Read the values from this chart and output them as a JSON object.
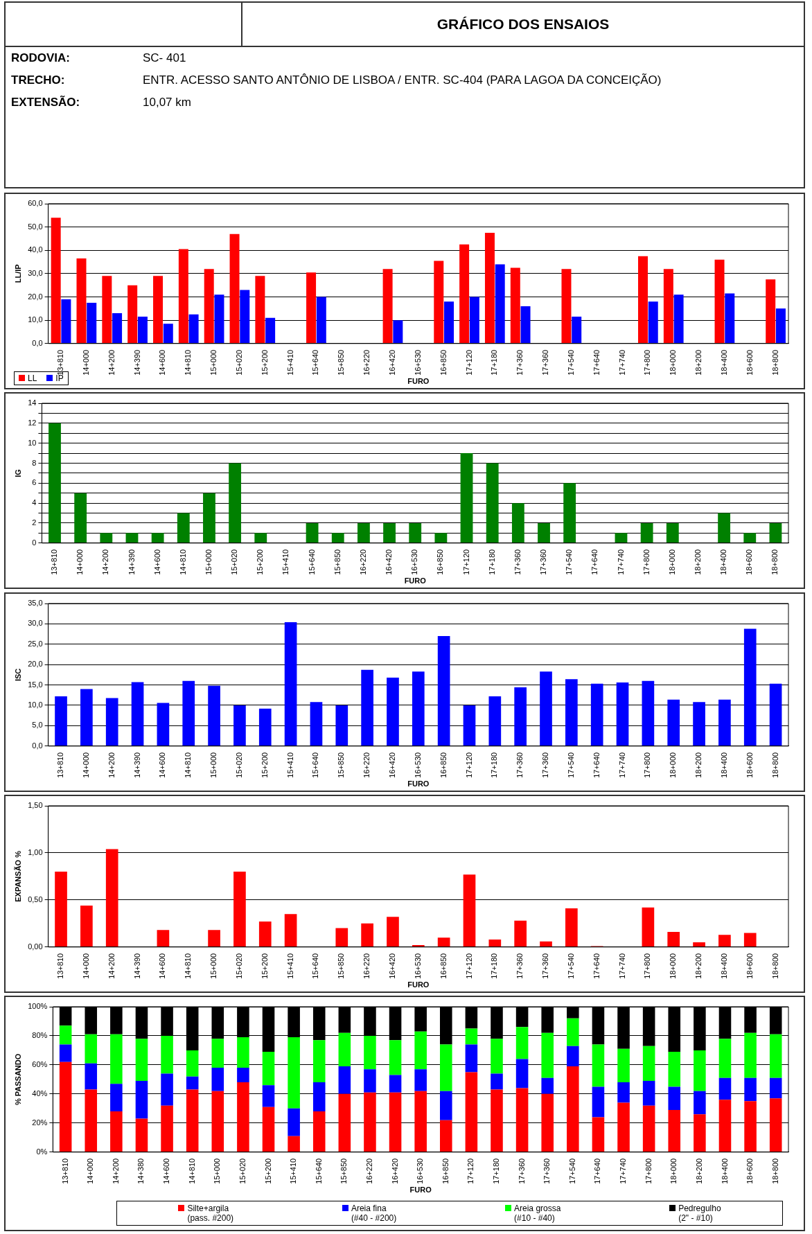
{
  "chart_data": [
    {
      "type": "other",
      "title": "GRÁFICO DOS  ENSAIOS",
      "annotations": [
        "RODOVIA:",
        "SC- 401",
        "TRECHO:",
        "ENTR. ACESSO SANTO ANTÔNIO DE LISBOA / ENTR. SC-404 (PARA LAGOA DA CONCEIÇÃO)",
        "EXTENSÃO:",
        "10,07 km"
      ]
    },
    {
      "type": "bar",
      "xlabel": "FURO",
      "ylabel": "LL/IP",
      "categories": [
        "13+810",
        "14+000",
        "14+200",
        "14+390",
        "14+600",
        "14+810",
        "15+000",
        "15+020",
        "15+200",
        "15+410",
        "15+640",
        "15+850",
        "16+220",
        "16+420",
        "16+530",
        "16+850",
        "17+120",
        "17+180",
        "17+360",
        "17+360",
        "17+540",
        "17+640",
        "17+740",
        "17+800",
        "18+000",
        "18+200",
        "18+400",
        "18+600",
        "18+800"
      ],
      "series": [
        {
          "name": "LL",
          "color": "#ff0000",
          "values": [
            54,
            36.5,
            29,
            25,
            29,
            40.5,
            32,
            47,
            29,
            null,
            30.5,
            null,
            null,
            32,
            null,
            35.5,
            42.5,
            47.5,
            32.5,
            null,
            32,
            null,
            null,
            37.5,
            32,
            null,
            36,
            null,
            27.5
          ]
        },
        {
          "name": "IP",
          "color": "#0000ff",
          "values": [
            19,
            17.5,
            13,
            11.5,
            8.5,
            12.5,
            21,
            23,
            11,
            null,
            20,
            null,
            null,
            10,
            null,
            18,
            20,
            34,
            16,
            null,
            11.5,
            null,
            null,
            18,
            21,
            null,
            21.5,
            null,
            15
          ]
        }
      ],
      "ylim": [
        0,
        60
      ],
      "yticks": [
        {
          "value": 0,
          "label": "0,0"
        },
        {
          "value": 10,
          "label": "10,0"
        },
        {
          "value": 20,
          "label": "20,0"
        },
        {
          "value": 30,
          "label": "30,0"
        },
        {
          "value": 40,
          "label": "40,0"
        },
        {
          "value": 50,
          "label": "50,0"
        },
        {
          "value": 60,
          "label": "60,0"
        }
      ],
      "grid": "y",
      "legend": "bottom left"
    },
    {
      "type": "bar",
      "xlabel": "FURO",
      "ylabel": "IG",
      "categories": [
        "13+810",
        "14+000",
        "14+200",
        "14+390",
        "14+600",
        "14+810",
        "15+000",
        "15+020",
        "15+200",
        "15+410",
        "15+640",
        "15+850",
        "16+220",
        "16+420",
        "16+530",
        "16+850",
        "17+120",
        "17+180",
        "17+360",
        "17+360",
        "17+540",
        "17+640",
        "17+740",
        "17+800",
        "18+000",
        "18+200",
        "18+400",
        "18+600",
        "18+800"
      ],
      "series": [
        {
          "color": "#008000",
          "values": [
            12,
            5,
            1,
            1,
            1,
            3,
            5,
            8,
            1,
            null,
            2,
            1,
            2,
            2,
            2,
            1,
            9,
            8,
            4,
            2,
            6,
            null,
            1,
            2,
            2,
            null,
            3,
            1,
            2
          ]
        }
      ],
      "ylim": [
        0,
        14
      ],
      "yticks": [
        0,
        {
          "value": 1,
          "label": null
        },
        2,
        {
          "value": 3,
          "label": null
        },
        4,
        {
          "value": 5,
          "label": null
        },
        6,
        {
          "value": 7,
          "label": null
        },
        8,
        {
          "value": 9,
          "label": null
        },
        10,
        {
          "value": 11,
          "label": null
        },
        12,
        {
          "value": 13,
          "label": null
        },
        14
      ],
      "grid": "y"
    },
    {
      "type": "bar",
      "xlabel": "FURO",
      "ylabel": "ISC",
      "categories": [
        "13+810",
        "14+000",
        "14+200",
        "14+390",
        "14+600",
        "14+810",
        "15+000",
        "15+020",
        "15+200",
        "15+410",
        "15+640",
        "15+850",
        "16+220",
        "16+420",
        "16+530",
        "16+850",
        "17+120",
        "17+180",
        "17+360",
        "17+360",
        "17+540",
        "17+640",
        "17+740",
        "17+800",
        "18+000",
        "18+200",
        "18+400",
        "18+600",
        "18+800"
      ],
      "series": [
        {
          "color": "#0000ff",
          "values": [
            12.2,
            14,
            11.8,
            15.7,
            10.6,
            16,
            14.8,
            10,
            9.2,
            30.4,
            10.8,
            10,
            18.7,
            16.8,
            18.3,
            27,
            10,
            12.2,
            14.4,
            18.3,
            16.4,
            15.3,
            15.6,
            16,
            11.4,
            10.8,
            11.4,
            28.8,
            15.3
          ]
        }
      ],
      "ylim": [
        0,
        35
      ],
      "yticks": [
        {
          "value": 0,
          "label": "0,0"
        },
        {
          "value": 5,
          "label": "5,0"
        },
        {
          "value": 10,
          "label": "10,0"
        },
        {
          "value": 15,
          "label": "15,0"
        },
        {
          "value": 20,
          "label": "20,0"
        },
        {
          "value": 25,
          "label": "25,0"
        },
        {
          "value": 30,
          "label": "30,0"
        },
        {
          "value": 35,
          "label": "35,0"
        }
      ],
      "grid": "y"
    },
    {
      "type": "bar",
      "xlabel": "FURO",
      "ylabel": "EXPANSÃO %",
      "categories": [
        "13+810",
        "14+000",
        "14+200",
        "14+390",
        "14+600",
        "14+810",
        "15+000",
        "15+020",
        "15+200",
        "15+410",
        "15+640",
        "15+850",
        "16+220",
        "16+420",
        "16+530",
        "16+850",
        "17+120",
        "17+180",
        "17+360",
        "17+360",
        "17+540",
        "17+640",
        "17+740",
        "17+800",
        "18+000",
        "18+200",
        "18+400",
        "18+600",
        "18+800"
      ],
      "series": [
        {
          "color": "#ff0000",
          "values": [
            0.8,
            0.44,
            1.04,
            null,
            0.18,
            null,
            0.18,
            0.8,
            0.27,
            0.35,
            null,
            0.2,
            0.25,
            0.32,
            0.02,
            0.1,
            0.77,
            0.08,
            0.28,
            0.06,
            0.41,
            0.01,
            null,
            0.42,
            0.16,
            0.05,
            0.13,
            0.15,
            null
          ]
        }
      ],
      "ylim": [
        0,
        1.5
      ],
      "yticks": [
        {
          "value": 0,
          "label": "0,00"
        },
        {
          "value": 0.5,
          "label": "0,50"
        },
        {
          "value": 1,
          "label": "1,00"
        },
        {
          "value": 1.5,
          "label": "1,50"
        }
      ],
      "grid": "y"
    },
    {
      "type": "bar",
      "stacked": true,
      "xlabel": "FURO",
      "ylabel": "% PASSANDO",
      "categories": [
        "13+810",
        "14+000",
        "14+200",
        "14+380",
        "14+600",
        "14+810",
        "15+000",
        "15+020",
        "15+200",
        "15+410",
        "15+640",
        "15+850",
        "16+220",
        "16+420",
        "16+530",
        "16+850",
        "17+120",
        "17+180",
        "17+360",
        "17+360",
        "17+540",
        "17+640",
        "17+740",
        "17+800",
        "18+000",
        "18+200",
        "18+400",
        "18+600",
        "18+800"
      ],
      "series": [
        {
          "name": "Silte+argila\n(pass. #200)",
          "color": "#ff0000",
          "values": [
            62,
            43,
            28,
            23,
            32,
            43,
            42,
            48,
            31,
            11,
            28,
            40,
            41,
            41,
            42,
            22,
            55,
            43,
            44,
            40,
            59,
            24,
            34,
            32,
            29,
            26,
            36,
            35,
            37
          ]
        },
        {
          "name": "Areia fina\n(#40 - #200)",
          "color": "#0000ff",
          "values": [
            12,
            18,
            19,
            26,
            22,
            9,
            16,
            10,
            15,
            19,
            20,
            19,
            16,
            12,
            15,
            20,
            19,
            11,
            20,
            11,
            14,
            21,
            14,
            17,
            16,
            16,
            15,
            16,
            14
          ]
        },
        {
          "name": "Areia grossa\n(#10 - #40)",
          "color": "#00ff00",
          "values": [
            13,
            20,
            34,
            29,
            26,
            18,
            20,
            21,
            23,
            49,
            29,
            23,
            23,
            24,
            26,
            32,
            11,
            24,
            22,
            31,
            19,
            29,
            23,
            24,
            24,
            28,
            27,
            31,
            30
          ]
        },
        {
          "name": "Pedregulho\n(2\" - #10)",
          "color": "#000000",
          "values": [
            13,
            19,
            19,
            22,
            20,
            30,
            22,
            21,
            31,
            21,
            23,
            18,
            20,
            23,
            17,
            26,
            15,
            22,
            14,
            18,
            8,
            26,
            29,
            27,
            31,
            30,
            22,
            18,
            19
          ]
        }
      ],
      "ylim": [
        0,
        100
      ],
      "yticks": [
        {
          "value": 0,
          "label": "0%"
        },
        {
          "value": 20,
          "label": "20%"
        },
        {
          "value": 40,
          "label": "40%"
        },
        {
          "value": 60,
          "label": "60%"
        },
        {
          "value": 80,
          "label": "80%"
        },
        {
          "value": 100,
          "label": "100%"
        }
      ],
      "grid": "y",
      "legend": "bottom"
    }
  ]
}
